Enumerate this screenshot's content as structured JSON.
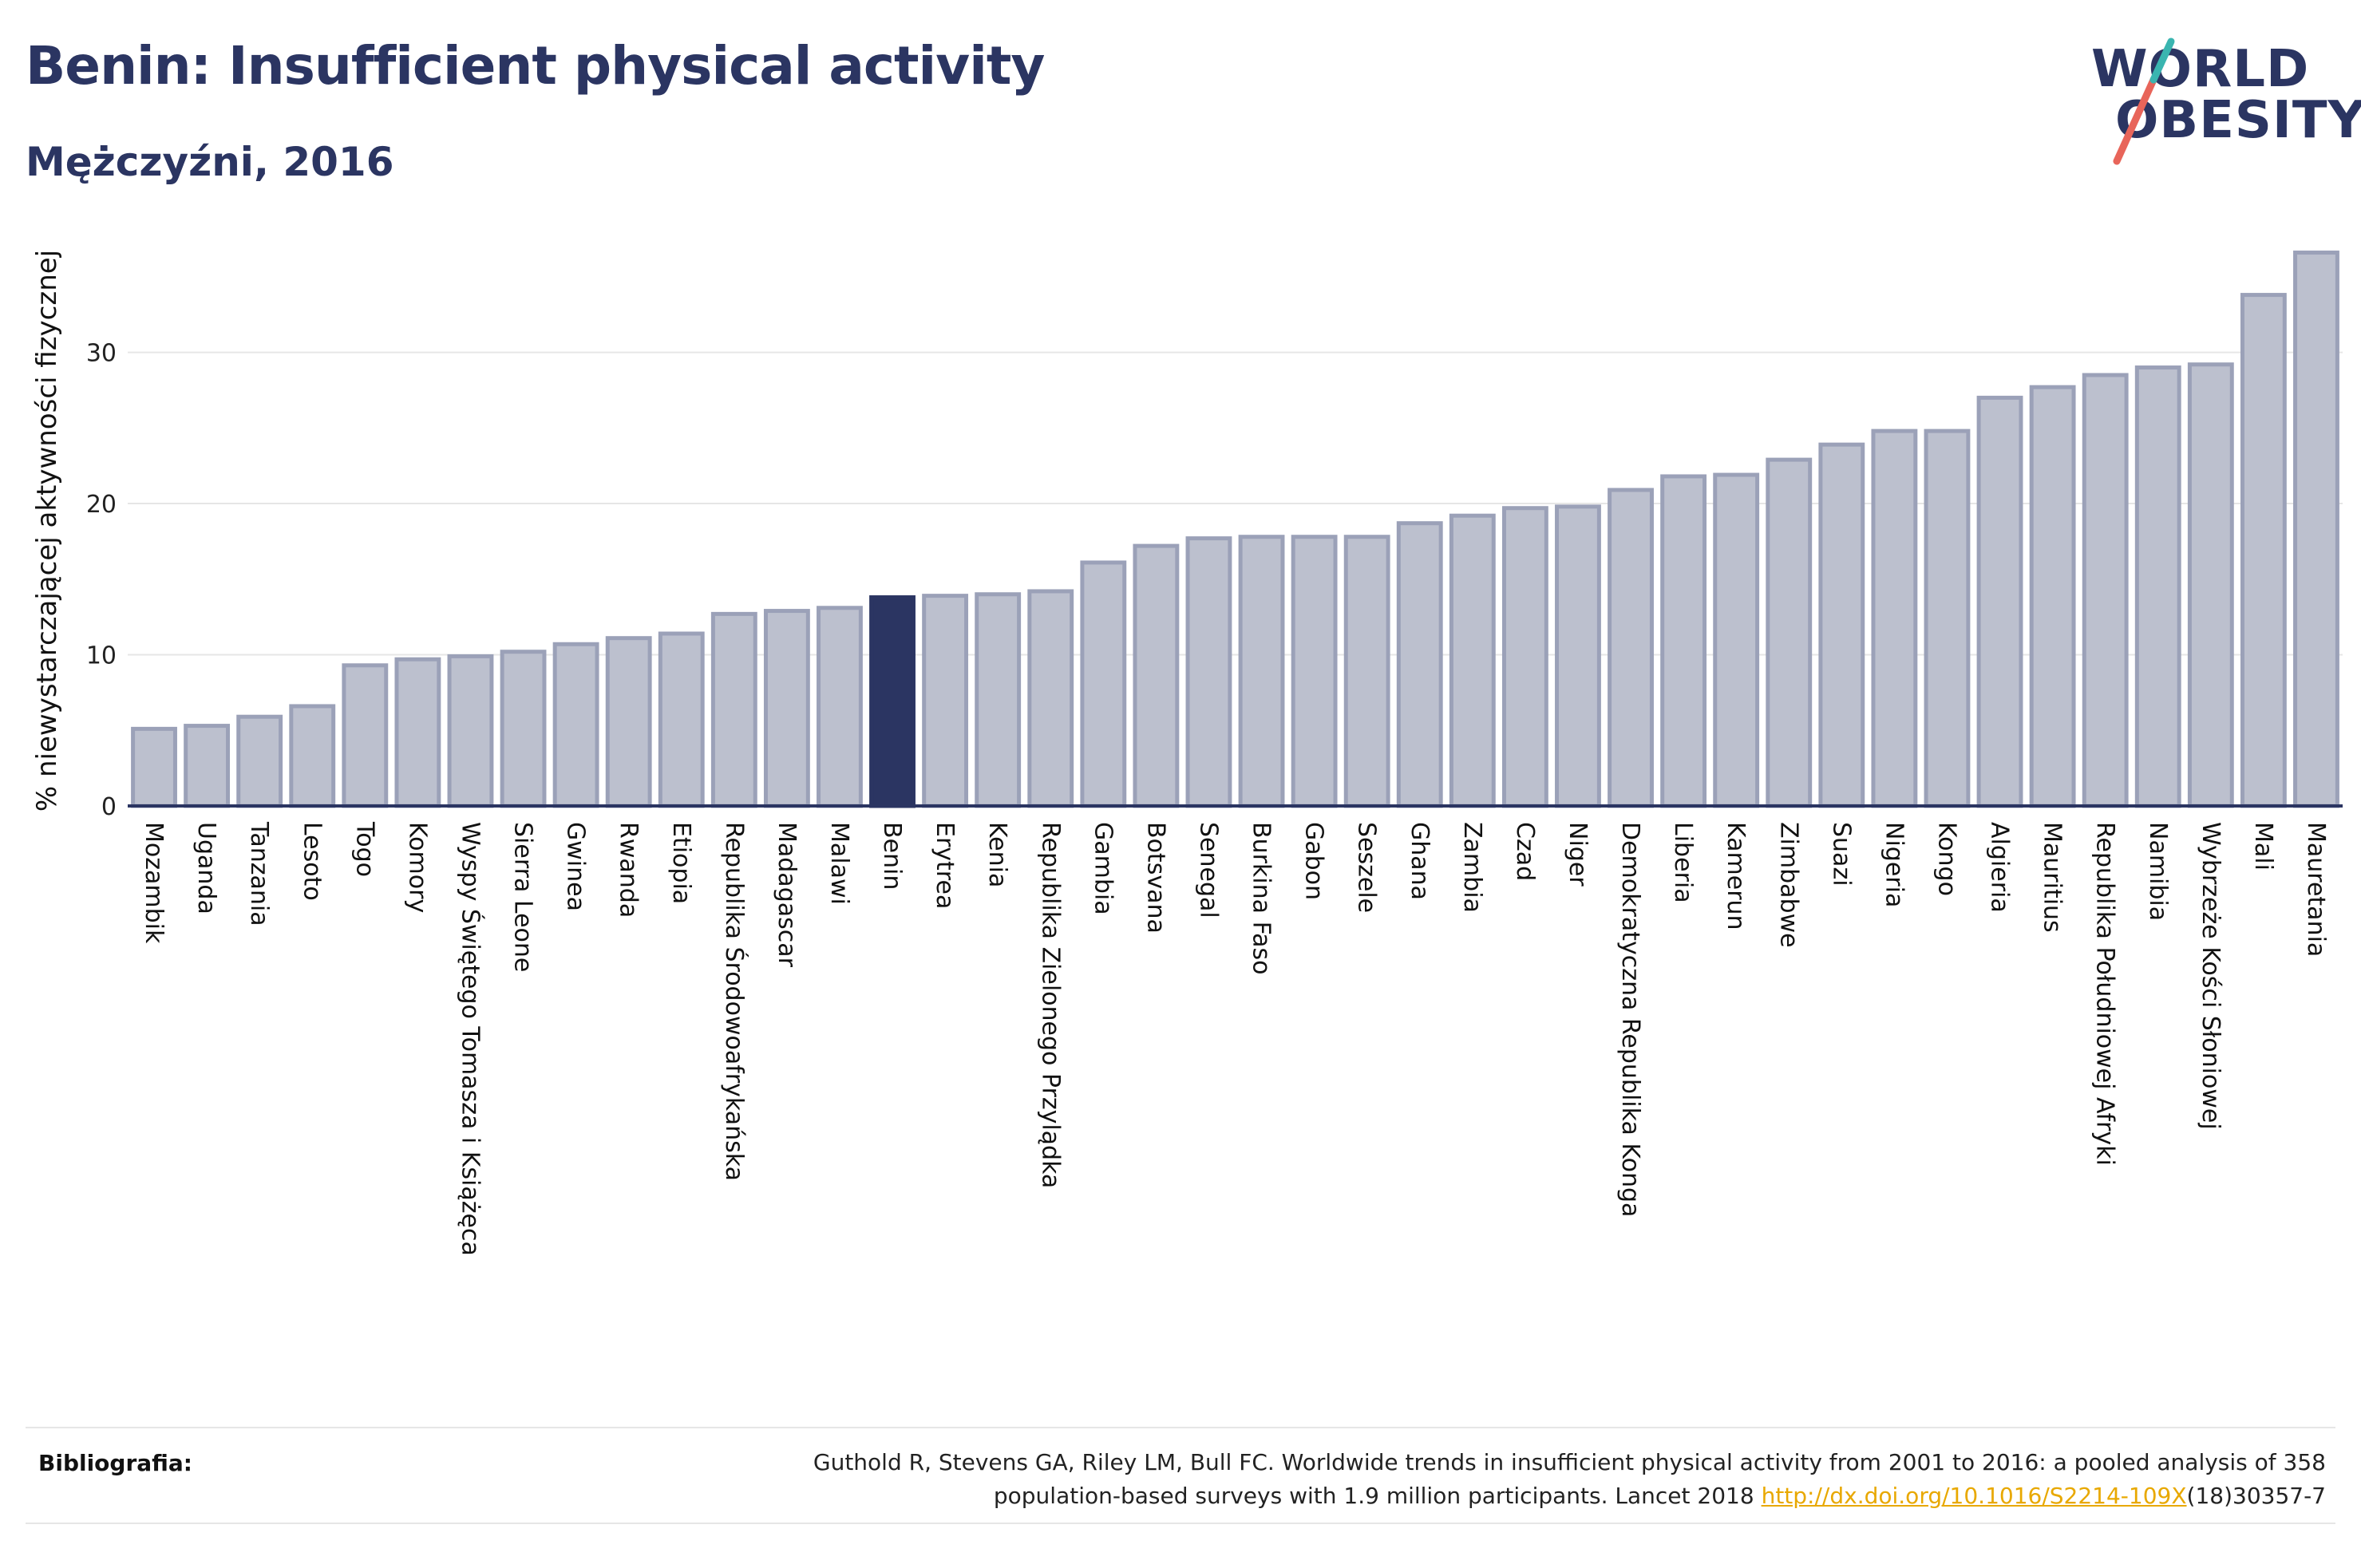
{
  "header": {
    "title": "Benin: Insufficient physical activity",
    "subtitle": "Mężczyźni, 2016"
  },
  "logo": {
    "line1": "WORLD",
    "line2": "OBESITY",
    "slash_colors": [
      "#e8655a",
      "#3ab5b0"
    ]
  },
  "colors": {
    "bar": "#bcc0ce",
    "bar_stroke": "#9ba1b8",
    "highlight": "#2b3562",
    "grid": "#e6e6e6",
    "axis": "#2b3562"
  },
  "chart_data": {
    "type": "bar",
    "ylabel": "% niewystarczającej aktywności fizycznej",
    "ylim": [
      0,
      38
    ],
    "yticks": [
      0,
      10,
      20,
      30
    ],
    "grid": true,
    "highlight": "Benin",
    "categories": [
      "Mozambik",
      "Uganda",
      "Tanzania",
      "Lesoto",
      "Togo",
      "Komory",
      "Wyspy Świętego Tomasza i Książęca",
      "Sierra Leone",
      "Gwinea",
      "Rwanda",
      "Etiopia",
      "Republika Środowoafrykańska",
      "Madagascar",
      "Malawi",
      "Benin",
      "Erytrea",
      "Kenia",
      "Republika Zielonego Przylądka",
      "Gambia",
      "Botsvana",
      "Senegal",
      "Burkina Faso",
      "Gabon",
      "Seszele",
      "Ghana",
      "Zambia",
      "Czad",
      "Niger",
      "Demokratyczna Republika Konga",
      "Liberia",
      "Kamerun",
      "Zimbabwe",
      "Suazi",
      "Nigeria",
      "Kongo",
      "Algieria",
      "Mauritius",
      "Republika Południowej Afryki",
      "Namibia",
      "Wybrzeże Kości Słoniowej",
      "Mali",
      "Mauretania"
    ],
    "values": [
      5.1,
      5.3,
      5.9,
      6.6,
      9.3,
      9.7,
      9.9,
      10.2,
      10.7,
      11.1,
      11.4,
      12.7,
      12.9,
      13.1,
      13.8,
      13.9,
      14.0,
      14.2,
      16.1,
      17.2,
      17.7,
      17.8,
      17.8,
      17.8,
      18.7,
      19.2,
      19.7,
      19.8,
      20.9,
      21.8,
      21.9,
      22.9,
      23.9,
      24.8,
      24.8,
      27.0,
      27.7,
      28.5,
      29.0,
      29.2,
      33.8,
      36.6
    ]
  },
  "footer": {
    "label": "Bibliografia:",
    "line1": "Guthold R, Stevens GA, Riley LM, Bull FC. Worldwide trends in insufficient physical activity from 2001 to 2016: a pooled analysis of 358",
    "line2_prefix": "population-based surveys with 1.9 million participants. Lancet 2018 ",
    "link": "http://dx.doi.org/10.1016/S2214-109X",
    "line2_suffix": "(18)30357-7"
  }
}
